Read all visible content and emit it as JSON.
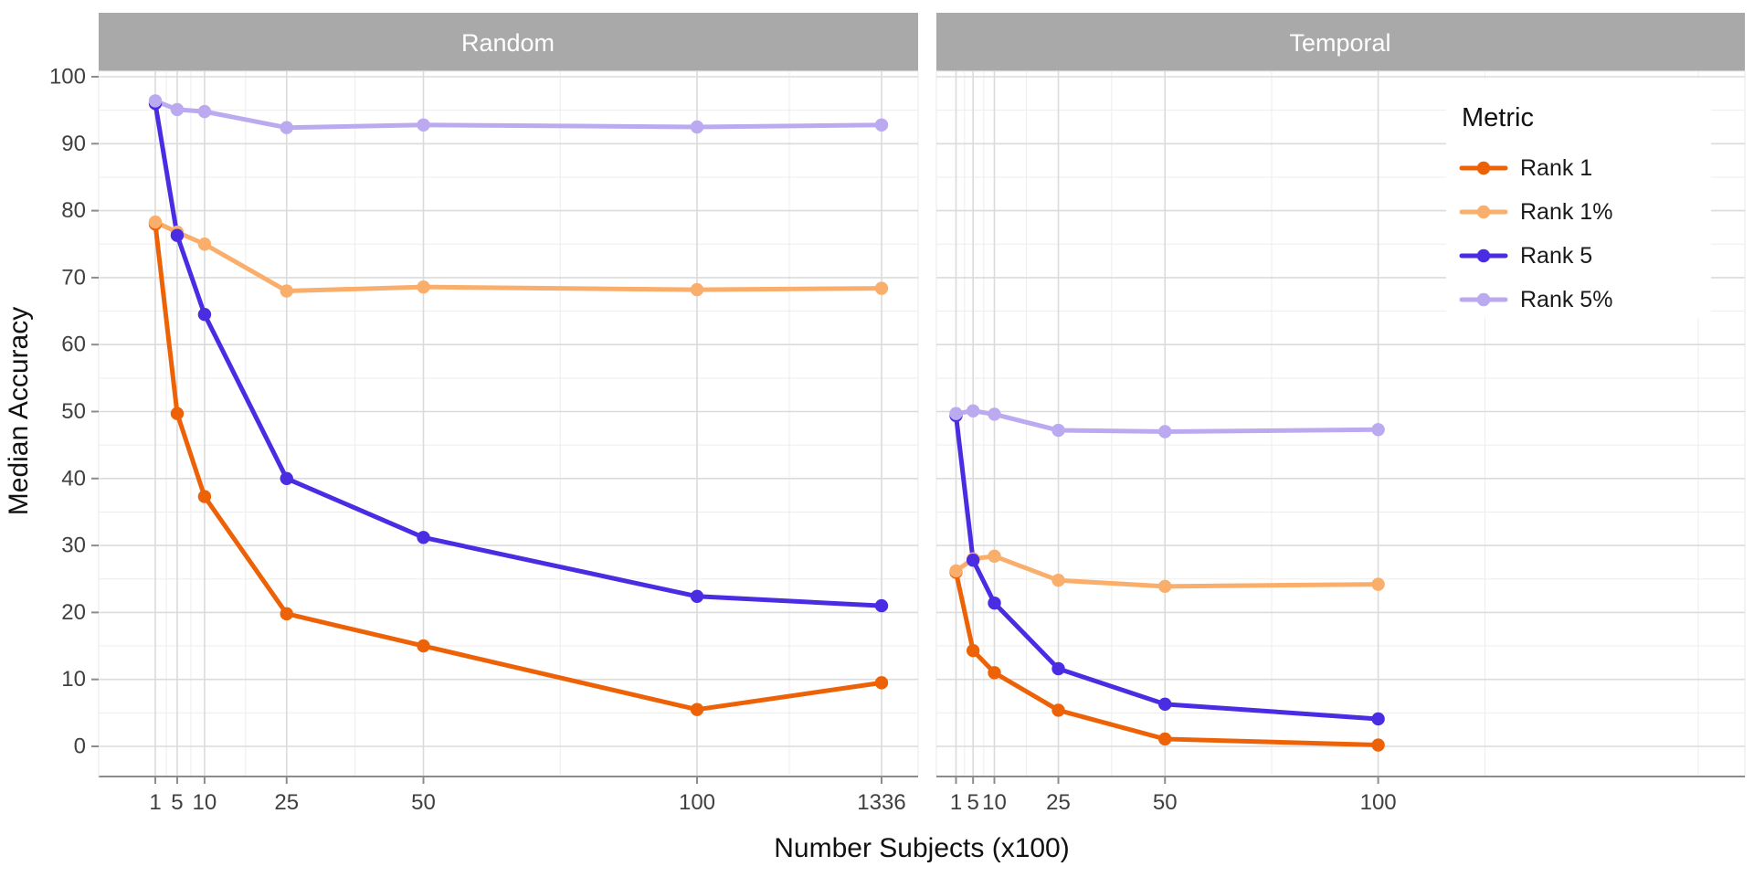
{
  "strips": [
    {
      "label": "Random"
    },
    {
      "label": "Temporal"
    }
  ],
  "y_axis": {
    "title": "Median Accuracy",
    "tick_labels": [
      "0",
      "10",
      "20",
      "30",
      "40",
      "50",
      "60",
      "70",
      "80",
      "90",
      "100"
    ]
  },
  "x_axis": {
    "title": "Number Subjects (x100)",
    "random_tick_labels": [
      "1",
      "5",
      "10",
      "25",
      "50",
      "100",
      "1336"
    ],
    "temporal_tick_labels": [
      "1",
      "5",
      "10",
      "25",
      "50",
      "100"
    ]
  },
  "legend": {
    "title": "Metric",
    "entries": [
      {
        "label": "Rank 1",
        "color": "#ED6206"
      },
      {
        "label": "Rank 1%",
        "color": "#FAAE6B"
      },
      {
        "label": "Rank 5",
        "color": "#4A2CE2"
      },
      {
        "label": "Rank 5%",
        "color": "#BBAAF0"
      }
    ]
  },
  "colors": {
    "rank1": "#ED6206",
    "rank1_pct": "#FAAE6B",
    "rank5": "#4A2CE2",
    "rank5_pct": "#BBAAF0",
    "strip_bg": "#A9A9A9",
    "strip_text": "#FFFFFF",
    "grid_major": "#DBDBDB",
    "grid_minor": "#EDEDED",
    "axis_line": "#8C8C8C"
  },
  "chart_data": [
    {
      "panel": "Random",
      "type": "line",
      "x": [
        1,
        5,
        10,
        25,
        50,
        100,
        1336
      ],
      "series": [
        {
          "name": "Rank 1",
          "color": "#ED6206",
          "values": [
            78.0,
            49.7,
            37.3,
            19.8,
            15.0,
            5.5,
            9.5
          ]
        },
        {
          "name": "Rank 1%",
          "color": "#FAAE6B",
          "values": [
            78.3,
            76.8,
            75.0,
            68.0,
            68.6,
            68.2,
            68.4
          ]
        },
        {
          "name": "Rank 5",
          "color": "#4A2CE2",
          "values": [
            96.0,
            76.3,
            64.5,
            40.0,
            31.2,
            22.4,
            21.0
          ]
        },
        {
          "name": "Rank 5%",
          "color": "#BBAAF0",
          "values": [
            96.4,
            95.1,
            94.8,
            92.4,
            92.8,
            92.5,
            92.8
          ]
        }
      ],
      "xlabel": "Number Subjects (x100)",
      "ylabel": "Median Accuracy",
      "ylim": [
        0,
        100
      ],
      "grid": true,
      "legend_position": "none"
    },
    {
      "panel": "Temporal",
      "type": "line",
      "x": [
        1,
        5,
        10,
        25,
        50,
        100
      ],
      "series": [
        {
          "name": "Rank 1",
          "color": "#ED6206",
          "values": [
            26.0,
            14.3,
            11.0,
            5.4,
            1.1,
            0.2
          ]
        },
        {
          "name": "Rank 1%",
          "color": "#FAAE6B",
          "values": [
            26.2,
            28.0,
            28.4,
            24.8,
            23.9,
            24.2
          ]
        },
        {
          "name": "Rank 5",
          "color": "#4A2CE2",
          "values": [
            49.4,
            27.8,
            21.4,
            11.6,
            6.3,
            4.1
          ]
        },
        {
          "name": "Rank 5%",
          "color": "#BBAAF0",
          "values": [
            49.7,
            50.1,
            49.6,
            47.2,
            47.0,
            47.3
          ]
        }
      ],
      "xlabel": "Number Subjects (x100)",
      "ylabel": "Median Accuracy",
      "ylim": [
        0,
        100
      ],
      "grid": true,
      "legend_position": "inside-top-right"
    }
  ]
}
